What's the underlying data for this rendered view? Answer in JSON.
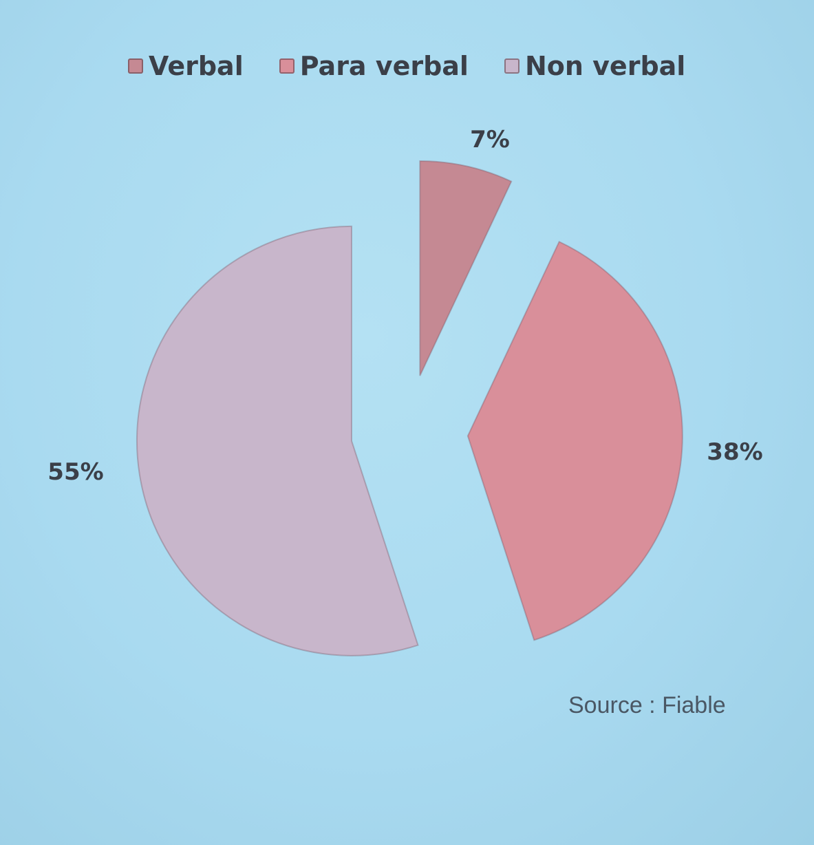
{
  "chart_data": {
    "type": "pie",
    "categories": [
      "Verbal",
      "Para verbal",
      "Non verbal"
    ],
    "values": [
      7,
      38,
      55
    ],
    "value_labels": [
      "7%",
      "38%",
      "55%"
    ],
    "colors": [
      "#c58993",
      "#d98f9a",
      "#c8b6cb"
    ],
    "legend_placement": "top",
    "exploded": true
  },
  "source_text": "Source : Fiable"
}
